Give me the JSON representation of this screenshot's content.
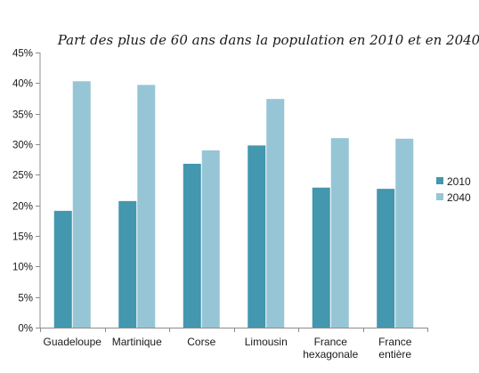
{
  "chart_data": {
    "type": "bar",
    "title": "Part des plus de 60 ans dans la population en 2010 et en 2040",
    "categories": [
      [
        "Guadeloupe"
      ],
      [
        "Martinique"
      ],
      [
        "Corse"
      ],
      [
        "Limousin"
      ],
      [
        "France",
        "hexagonale"
      ],
      [
        "France",
        "entière"
      ]
    ],
    "series": [
      {
        "name": "2010",
        "color": "#4397ae",
        "values": [
          19.1,
          20.7,
          26.8,
          29.8,
          22.9,
          22.7
        ]
      },
      {
        "name": "2040",
        "color": "#96c6d6",
        "values": [
          40.3,
          39.7,
          29.0,
          37.4,
          31.0,
          30.9
        ]
      }
    ],
    "ylim": [
      0,
      45
    ],
    "yticks": [
      "0%",
      "5%",
      "10%",
      "15%",
      "20%",
      "25%",
      "30%",
      "35%",
      "40%",
      "45%"
    ],
    "ytick_values": [
      0,
      5,
      10,
      15,
      20,
      25,
      30,
      35,
      40,
      45
    ],
    "grid": false,
    "legend_position": "right",
    "axis_color": "#8c8c8c"
  }
}
